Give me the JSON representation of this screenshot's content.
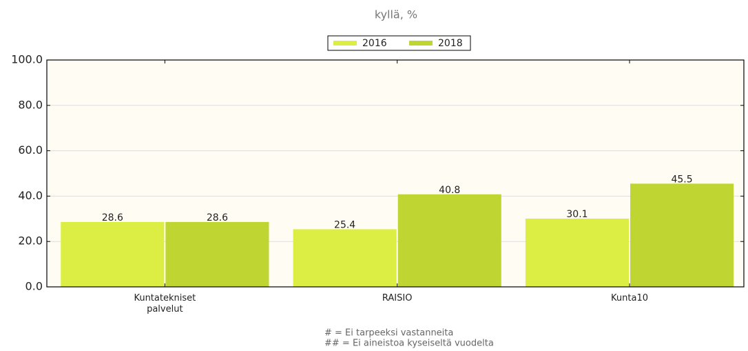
{
  "chart_data": {
    "type": "bar",
    "subtitle": "kyllä, %",
    "categories": [
      "Kuntatekniset palvelut",
      "RAISIO",
      "Kunta10"
    ],
    "series": [
      {
        "name": "2016",
        "color": "#dcee44",
        "values": [
          28.6,
          25.4,
          30.1
        ]
      },
      {
        "name": "2018",
        "color": "#bfd632",
        "values": [
          28.6,
          40.8,
          45.5
        ]
      }
    ],
    "ylim": [
      0,
      100
    ],
    "yticks": [
      {
        "value": 0,
        "label": "0.0"
      },
      {
        "value": 20,
        "label": "20.0"
      },
      {
        "value": 40,
        "label": "40.0"
      },
      {
        "value": 60,
        "label": "60.0"
      },
      {
        "value": 80,
        "label": "80.0"
      },
      {
        "value": 100,
        "label": "100.0"
      }
    ],
    "grid": true,
    "legend": "top",
    "notes": [
      "# = Ei tarpeeksi vastanneita",
      "## = Ei aineistoa kyseiseltä vuodelta"
    ]
  }
}
